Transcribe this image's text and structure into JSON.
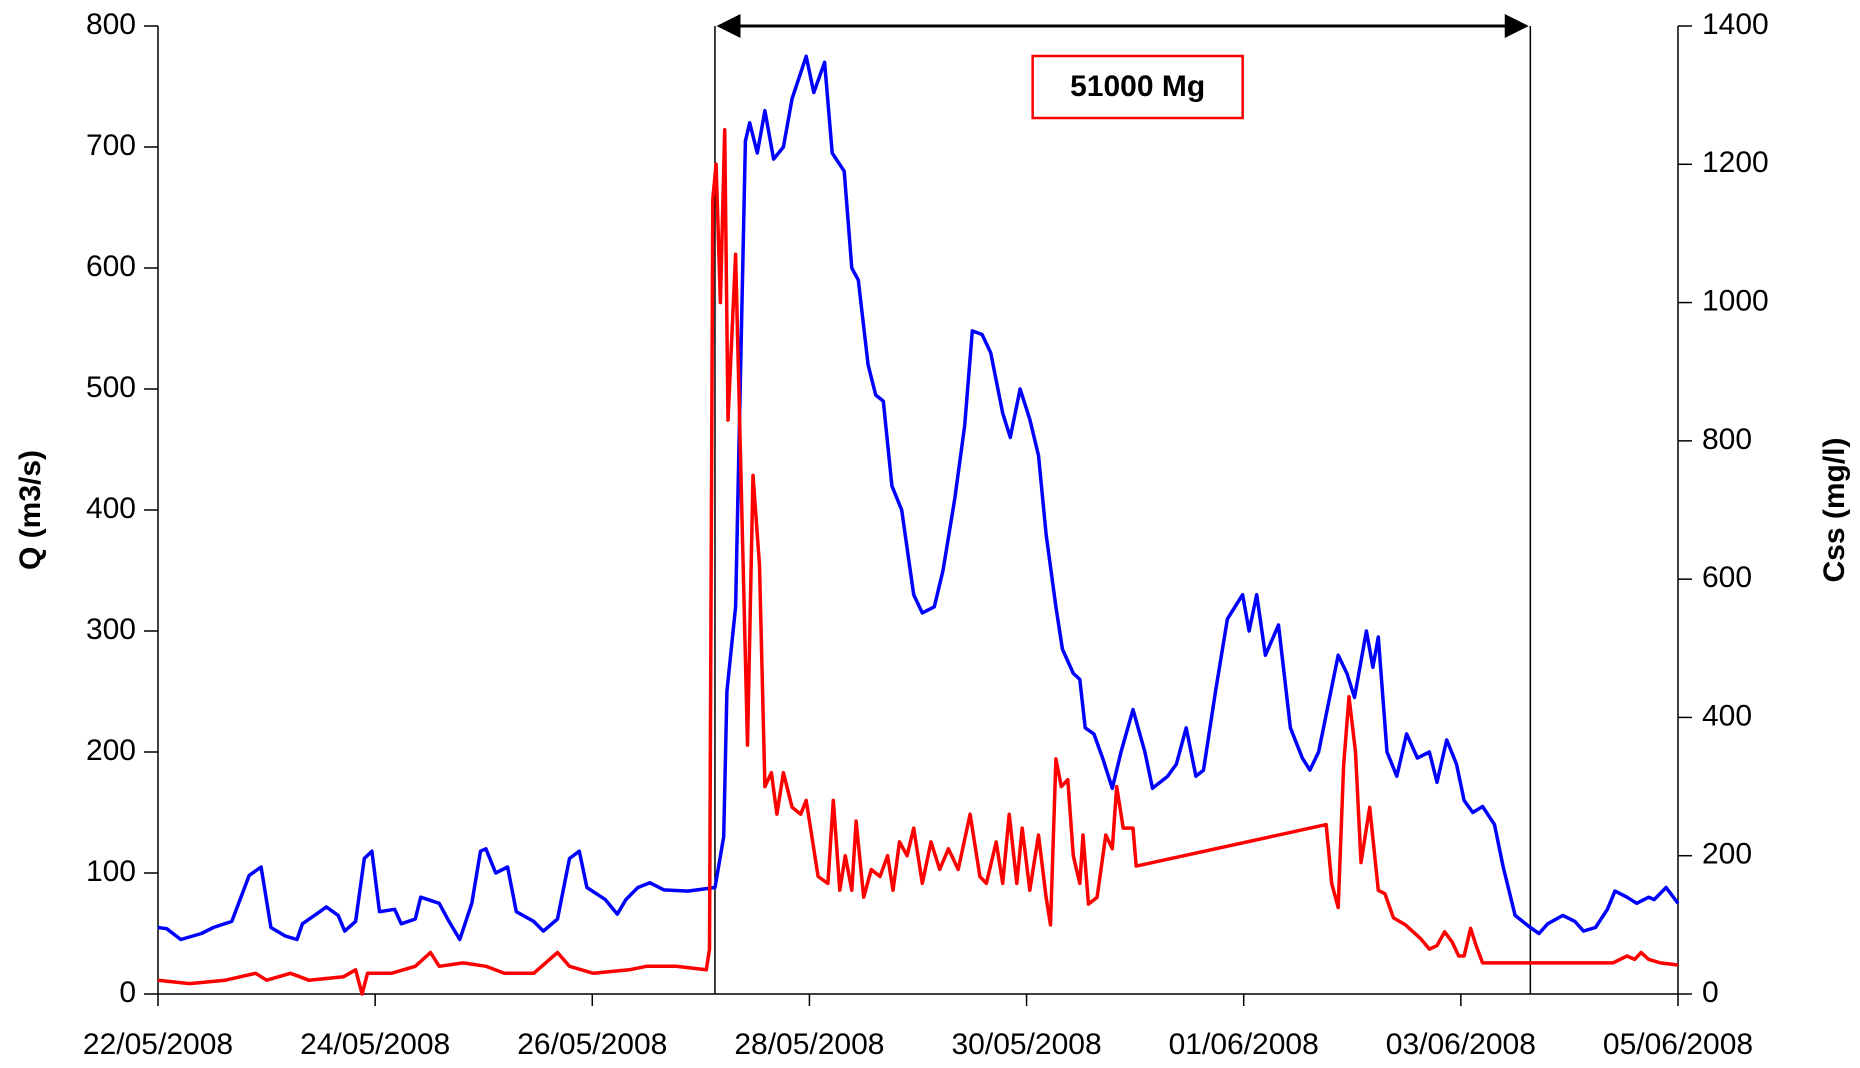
{
  "chart_data": {
    "type": "line",
    "y_label": "Q (m3/s)",
    "y2_label": "Css (mg/l)",
    "annotation": "51000 Mg",
    "annotation_span": [
      5.13,
      12.64
    ],
    "xlim": [
      0,
      14
    ],
    "xticks": [
      {
        "value": 0,
        "label": "22/05/2008"
      },
      {
        "value": 2,
        "label": "24/05/2008"
      },
      {
        "value": 4,
        "label": "26/05/2008"
      },
      {
        "value": 6,
        "label": "28/05/2008"
      },
      {
        "value": 8,
        "label": "30/05/2008"
      },
      {
        "value": 10,
        "label": "01/06/2008"
      },
      {
        "value": 12,
        "label": "03/06/2008"
      },
      {
        "value": 14,
        "label": "05/06/2008"
      }
    ],
    "ylim": [
      0,
      800
    ],
    "yticks": [
      0,
      100,
      200,
      300,
      400,
      500,
      600,
      700,
      800
    ],
    "y2lim": [
      0,
      1400
    ],
    "y2ticks": [
      0,
      200,
      400,
      600,
      800,
      1000,
      1200,
      1400
    ],
    "series": [
      {
        "color": "#0000ff",
        "x": [
          0,
          0.08,
          0.21,
          0.4,
          0.51,
          0.68,
          0.73,
          0.84,
          0.95,
          1.04,
          1.17,
          1.28,
          1.33,
          1.49,
          1.55,
          1.66,
          1.72,
          1.82,
          1.9,
          1.97,
          2.04,
          2.18,
          2.24,
          2.37,
          2.42,
          2.59,
          2.68,
          2.78,
          2.89,
          2.97,
          3.02,
          3.11,
          3.22,
          3.3,
          3.46,
          3.55,
          3.68,
          3.79,
          3.88,
          3.95,
          4.12,
          4.23,
          4.31,
          4.42,
          4.53,
          4.66,
          4.88,
          5.13,
          5.21,
          5.24,
          5.32,
          5.41,
          5.45,
          5.52,
          5.59,
          5.67,
          5.76,
          5.84,
          5.97,
          6.04,
          6.14,
          6.21,
          6.32,
          6.39,
          6.45,
          6.54,
          6.61,
          6.68,
          6.76,
          6.85,
          6.96,
          7.04,
          7.15,
          7.23,
          7.34,
          7.43,
          7.5,
          7.59,
          7.67,
          7.78,
          7.85,
          7.94,
          8.03,
          8.11,
          8.18,
          8.27,
          8.33,
          8.43,
          8.49,
          8.54,
          8.62,
          8.7,
          8.79,
          8.87,
          8.98,
          9.09,
          9.16,
          9.3,
          9.38,
          9.47,
          9.56,
          9.63,
          9.74,
          9.85,
          9.99,
          10.05,
          10.12,
          10.2,
          10.32,
          10.43,
          10.54,
          10.61,
          10.69,
          10.78,
          10.87,
          10.95,
          11.02,
          11.13,
          11.19,
          11.24,
          11.32,
          11.41,
          11.5,
          11.6,
          11.71,
          11.78,
          11.87,
          11.96,
          12.03,
          12.11,
          12.2,
          12.31,
          12.39,
          12.5,
          12.64,
          12.72,
          12.8,
          12.94,
          13.05,
          13.13,
          13.24,
          13.35,
          13.42,
          13.53,
          13.62,
          13.73,
          13.78,
          13.89,
          14.0
        ],
        "values": [
          55,
          54,
          45,
          50,
          55,
          60,
          72,
          98,
          105,
          55,
          48,
          45,
          58,
          68,
          72,
          65,
          52,
          60,
          112,
          118,
          68,
          70,
          58,
          62,
          80,
          75,
          60,
          45,
          75,
          118,
          120,
          100,
          105,
          68,
          60,
          52,
          62,
          112,
          118,
          88,
          78,
          66,
          78,
          88,
          92,
          86,
          85,
          88,
          130,
          250,
          320,
          705,
          720,
          695,
          730,
          690,
          700,
          740,
          775,
          745,
          770,
          695,
          680,
          600,
          590,
          520,
          495,
          490,
          420,
          400,
          330,
          315,
          320,
          350,
          410,
          470,
          548,
          545,
          530,
          480,
          460,
          500,
          475,
          445,
          380,
          320,
          285,
          265,
          260,
          220,
          215,
          195,
          170,
          200,
          235,
          200,
          170,
          180,
          190,
          220,
          180,
          185,
          250,
          310,
          330,
          300,
          330,
          280,
          305,
          220,
          195,
          185,
          200,
          240,
          280,
          265,
          245,
          300,
          270,
          295,
          200,
          180,
          215,
          195,
          200,
          175,
          210,
          190,
          160,
          150,
          155,
          140,
          105,
          65,
          55,
          50,
          58,
          65,
          60,
          52,
          55,
          70,
          85,
          80,
          75,
          80,
          78,
          88,
          75
        ]
      },
      {
        "color": "#ff0000",
        "axis": "y2",
        "x": [
          0,
          0.29,
          0.62,
          0.9,
          1.0,
          1.22,
          1.39,
          1.71,
          1.82,
          1.88,
          1.93,
          2.15,
          2.37,
          2.51,
          2.59,
          2.81,
          3.02,
          3.19,
          3.46,
          3.68,
          3.79,
          4.01,
          4.34,
          4.5,
          4.77,
          5.05,
          5.08,
          5.11,
          5.14,
          5.18,
          5.22,
          5.25,
          5.32,
          5.43,
          5.48,
          5.54,
          5.59,
          5.65,
          5.7,
          5.76,
          5.84,
          5.92,
          5.97,
          6.08,
          6.17,
          6.22,
          6.28,
          6.33,
          6.39,
          6.43,
          6.5,
          6.57,
          6.65,
          6.72,
          6.77,
          6.83,
          6.9,
          6.96,
          7.04,
          7.12,
          7.2,
          7.28,
          7.37,
          7.48,
          7.57,
          7.63,
          7.72,
          7.78,
          7.84,
          7.91,
          7.96,
          8.03,
          8.11,
          8.18,
          8.22,
          8.27,
          8.32,
          8.38,
          8.43,
          8.49,
          8.52,
          8.57,
          8.65,
          8.73,
          8.79,
          8.83,
          8.89,
          8.98,
          9.01,
          10.76,
          10.81,
          10.87,
          10.92,
          10.97,
          11.03,
          11.08,
          11.16,
          11.24,
          11.3,
          11.38,
          11.49,
          11.63,
          11.71,
          11.78,
          11.85,
          11.92,
          11.98,
          12.03,
          12.09,
          12.14,
          12.2,
          12.64,
          13.4,
          13.53,
          13.6,
          13.66,
          13.73,
          13.84,
          14.0
        ],
        "values": [
          20,
          15,
          20,
          30,
          20,
          30,
          20,
          25,
          35,
          0,
          30,
          30,
          40,
          60,
          40,
          45,
          40,
          30,
          30,
          60,
          40,
          30,
          35,
          40,
          40,
          35,
          65,
          1150,
          1200,
          1000,
          1250,
          830,
          1070,
          360,
          750,
          620,
          300,
          320,
          260,
          320,
          270,
          260,
          280,
          170,
          160,
          280,
          150,
          200,
          150,
          250,
          140,
          180,
          170,
          200,
          150,
          220,
          200,
          240,
          160,
          220,
          180,
          210,
          180,
          260,
          170,
          160,
          220,
          160,
          260,
          160,
          240,
          150,
          230,
          140,
          100,
          340,
          300,
          310,
          200,
          160,
          230,
          130,
          140,
          230,
          210,
          300,
          240,
          240,
          185,
          245,
          160,
          125,
          330,
          430,
          350,
          190,
          270,
          150,
          145,
          110,
          100,
          80,
          65,
          70,
          90,
          75,
          55,
          55,
          95,
          70,
          45,
          45,
          45,
          55,
          50,
          60,
          50,
          45,
          42
        ]
      }
    ]
  }
}
